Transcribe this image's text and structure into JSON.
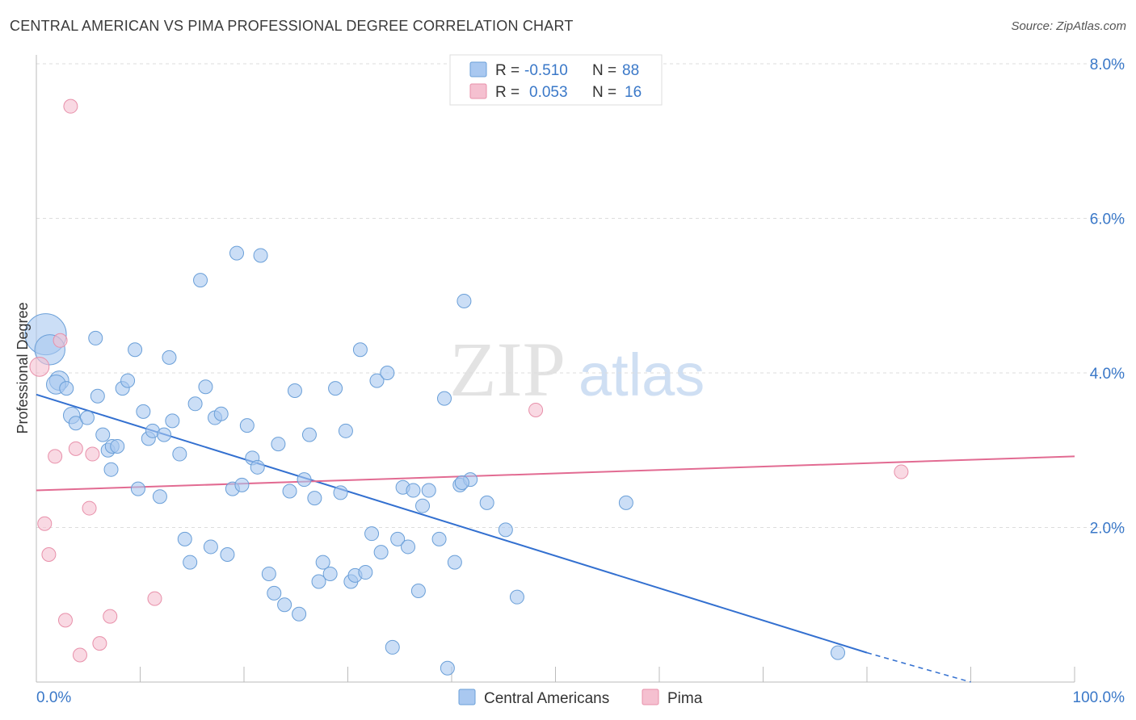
{
  "header": {
    "title": "CENTRAL AMERICAN VS PIMA PROFESSIONAL DEGREE CORRELATION CHART",
    "source": "Source: ZipAtlas.com"
  },
  "watermark": {
    "zip": "ZIP",
    "atlas": "atlas"
  },
  "legend": {
    "rows": [
      {
        "r_label": "R =",
        "r_value": "-0.510",
        "n_label": "N =",
        "n_value": "88",
        "color": "#a9c8f0"
      },
      {
        "r_label": "R =",
        "r_value": "0.053",
        "n_label": "N =",
        "n_value": "16",
        "color": "#f5b8cc"
      }
    ]
  },
  "bottom_legend": [
    "Central Americans",
    "Pima"
  ],
  "colors": {
    "blue_fill": "#a9c8f0",
    "blue_stroke": "#6a9fd8",
    "blue_line": "#3370d0",
    "pink_fill": "#f5c0d0",
    "pink_stroke": "#e890aa",
    "pink_line": "#e26b92",
    "tick_label": "#3a78c8",
    "grid": "#dddddd"
  },
  "chart_data": {
    "type": "scatter",
    "title": "CENTRAL AMERICAN VS PIMA PROFESSIONAL DEGREE CORRELATION CHART",
    "xlabel": "",
    "ylabel": "Professional Degree",
    "xlim": [
      0,
      100
    ],
    "ylim": [
      0,
      8
    ],
    "x_ticks": [
      "0.0%",
      "100.0%"
    ],
    "y_ticks": [
      "2.0%",
      "4.0%",
      "6.0%",
      "8.0%"
    ],
    "y_tick_values": [
      2,
      4,
      6,
      8
    ],
    "grid": true,
    "legend_position": "top-center",
    "series": [
      {
        "name": "Central Americans",
        "r": -0.51,
        "n": 88,
        "trend": {
          "x0": 0,
          "y0": 3.72,
          "x1": 80,
          "y1": 0.38,
          "dash_to_x": 90,
          "dash_to_y": 0.0
        },
        "points": [
          [
            0.9,
            4.5,
            3
          ],
          [
            1.3,
            4.3,
            2.2
          ],
          [
            2.2,
            3.9,
            1.4
          ],
          [
            1.9,
            3.85,
            1.4
          ],
          [
            2.9,
            3.8,
            1
          ],
          [
            3.4,
            3.45,
            1.2
          ],
          [
            3.8,
            3.35,
            1
          ],
          [
            4.9,
            3.42,
            1
          ],
          [
            5.7,
            4.45,
            1
          ],
          [
            5.9,
            3.7,
            1
          ],
          [
            6.4,
            3.2,
            1
          ],
          [
            6.9,
            3.0,
            1
          ],
          [
            7.2,
            2.75,
            1
          ],
          [
            7.3,
            3.05,
            1
          ],
          [
            7.8,
            3.05,
            1
          ],
          [
            8.3,
            3.8,
            1
          ],
          [
            8.8,
            3.9,
            1
          ],
          [
            9.5,
            4.3,
            1
          ],
          [
            9.8,
            2.5,
            1
          ],
          [
            10.3,
            3.5,
            1
          ],
          [
            10.8,
            3.15,
            1
          ],
          [
            11.2,
            3.25,
            1
          ],
          [
            11.9,
            2.4,
            1
          ],
          [
            12.3,
            3.2,
            1
          ],
          [
            12.8,
            4.2,
            1
          ],
          [
            13.1,
            3.38,
            1
          ],
          [
            13.8,
            2.95,
            1
          ],
          [
            14.3,
            1.85,
            1
          ],
          [
            14.8,
            1.55,
            1
          ],
          [
            15.3,
            3.6,
            1
          ],
          [
            15.8,
            5.2,
            1
          ],
          [
            16.3,
            3.82,
            1
          ],
          [
            16.8,
            1.75,
            1
          ],
          [
            17.2,
            3.42,
            1
          ],
          [
            17.8,
            3.47,
            1
          ],
          [
            18.4,
            1.65,
            1
          ],
          [
            18.9,
            2.5,
            1
          ],
          [
            19.3,
            5.55,
            1
          ],
          [
            19.8,
            2.55,
            1
          ],
          [
            20.3,
            3.32,
            1
          ],
          [
            20.8,
            2.9,
            1
          ],
          [
            21.3,
            2.78,
            1
          ],
          [
            21.6,
            5.52,
            1
          ],
          [
            22.4,
            1.4,
            1
          ],
          [
            22.9,
            1.15,
            1
          ],
          [
            23.3,
            3.08,
            1
          ],
          [
            23.9,
            1.0,
            1
          ],
          [
            24.4,
            2.47,
            1
          ],
          [
            24.9,
            3.77,
            1
          ],
          [
            25.3,
            0.88,
            1
          ],
          [
            25.8,
            2.62,
            1
          ],
          [
            26.3,
            3.2,
            1
          ],
          [
            26.8,
            2.38,
            1
          ],
          [
            27.2,
            1.3,
            1
          ],
          [
            27.6,
            1.55,
            1
          ],
          [
            28.3,
            1.4,
            1
          ],
          [
            28.8,
            3.8,
            1
          ],
          [
            29.3,
            2.45,
            1
          ],
          [
            29.8,
            3.25,
            1
          ],
          [
            30.3,
            1.3,
            1
          ],
          [
            30.7,
            1.38,
            1
          ],
          [
            31.2,
            4.3,
            1
          ],
          [
            31.7,
            1.42,
            1
          ],
          [
            32.3,
            1.92,
            1
          ],
          [
            32.8,
            3.9,
            1
          ],
          [
            33.2,
            1.68,
            1
          ],
          [
            33.8,
            4.0,
            1
          ],
          [
            34.3,
            0.45,
            1
          ],
          [
            34.8,
            1.85,
            1
          ],
          [
            35.3,
            2.52,
            1
          ],
          [
            35.8,
            1.75,
            1
          ],
          [
            36.3,
            2.48,
            1
          ],
          [
            36.8,
            1.18,
            1
          ],
          [
            37.2,
            2.28,
            1
          ],
          [
            37.8,
            2.48,
            1
          ],
          [
            38.8,
            1.85,
            1
          ],
          [
            39.3,
            3.67,
            1
          ],
          [
            39.6,
            0.18,
            1
          ],
          [
            40.3,
            1.55,
            1
          ],
          [
            40.8,
            2.55,
            1
          ],
          [
            41.2,
            4.93,
            1
          ],
          [
            41.8,
            2.62,
            1
          ],
          [
            43.4,
            2.32,
            1
          ],
          [
            45.2,
            1.97,
            1
          ],
          [
            46.3,
            1.1,
            1
          ],
          [
            56.8,
            2.32,
            1
          ],
          [
            77.2,
            0.38,
            1
          ],
          [
            41.0,
            2.58,
            1
          ]
        ]
      },
      {
        "name": "Pima",
        "r": 0.053,
        "n": 16,
        "trend": {
          "x0": 0,
          "y0": 2.48,
          "x1": 100,
          "y1": 2.92
        },
        "points": [
          [
            0.3,
            4.08,
            1.4
          ],
          [
            3.3,
            7.45,
            1
          ],
          [
            2.3,
            4.42,
            1
          ],
          [
            1.8,
            2.92,
            1
          ],
          [
            3.8,
            3.02,
            1
          ],
          [
            5.4,
            2.95,
            1
          ],
          [
            5.1,
            2.25,
            1
          ],
          [
            0.8,
            2.05,
            1
          ],
          [
            1.2,
            1.65,
            1
          ],
          [
            2.8,
            0.8,
            1
          ],
          [
            7.1,
            0.85,
            1
          ],
          [
            6.1,
            0.5,
            1
          ],
          [
            4.2,
            0.35,
            1
          ],
          [
            11.4,
            1.08,
            1
          ],
          [
            48.1,
            3.52,
            1
          ],
          [
            83.3,
            2.72,
            1
          ]
        ]
      }
    ]
  }
}
